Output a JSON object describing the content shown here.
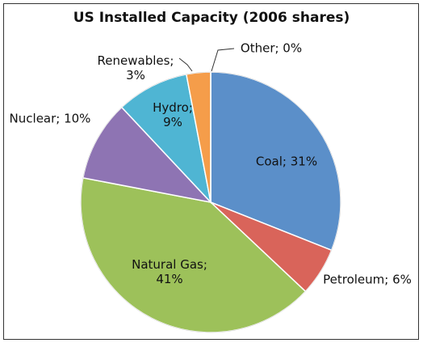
{
  "chart_data": {
    "type": "pie",
    "title": "US Installed Capacity (2006 shares)",
    "values": [
      31,
      6,
      41,
      10,
      9,
      3,
      0
    ],
    "value_labels": [
      "Coal; 31%",
      "Petroleum; 6%",
      "Natural Gas;\n41%",
      "Nuclear; 10%",
      "Hydro;\n9%",
      "Renewables;\n3%",
      "Other; 0%"
    ],
    "colors": [
      "#5b8fc9",
      "#d9645a",
      "#9dc15a",
      "#8e74b3",
      "#4fb5d3",
      "#f59d4a",
      "#a0a0a0"
    ]
  }
}
